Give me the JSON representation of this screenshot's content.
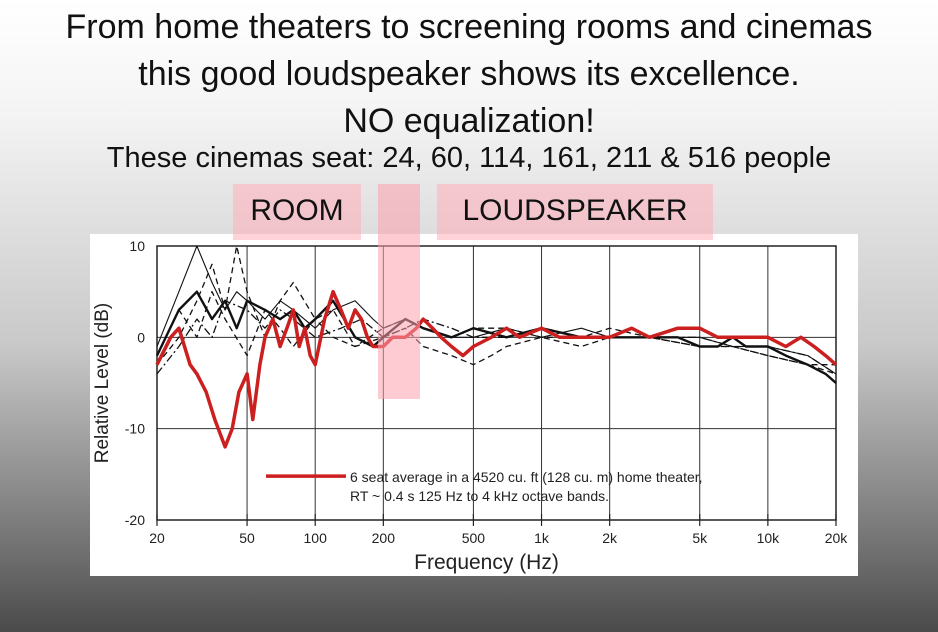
{
  "slide": {
    "line1": "From home theaters to screening rooms and cinemas",
    "line2": "this good loudspeaker shows its excellence.",
    "line3": "NO equalization!",
    "line4": "These cinemas seat: 24, 60, 114, 161, 211 & 516 people"
  },
  "labels": {
    "room": "ROOM",
    "loudspeaker": "LOUDSPEAKER"
  },
  "chart_data": {
    "type": "line",
    "xlabel": "Frequency (Hz)",
    "ylabel": "Relative Level (dB)",
    "xscale": "log",
    "xlim": [
      20,
      20000
    ],
    "ylim": [
      -20,
      10
    ],
    "x_ticks": [
      20,
      50,
      100,
      200,
      500,
      1000,
      2000,
      5000,
      10000,
      20000
    ],
    "x_tick_labels": [
      "20",
      "50",
      "100",
      "200",
      "500",
      "1k",
      "2k",
      "5k",
      "10k",
      "20k"
    ],
    "y_ticks": [
      10,
      0,
      -10,
      -20
    ],
    "y_tick_labels": [
      "10",
      "0",
      "-10",
      "-20"
    ],
    "grid": true,
    "legend": {
      "line1": "6 seat average in a 4520 cu. ft (128 cu. m) home theater,",
      "line2": "RT ~ 0.4 s 125 Hz to 4 kHz octave bands.",
      "color": "#cc1f1f"
    },
    "series": [
      {
        "style": "highlight",
        "x": [
          20,
          23,
          25,
          28,
          30,
          33,
          36,
          40,
          43,
          46,
          50,
          53,
          57,
          60,
          65,
          70,
          75,
          80,
          85,
          90,
          95,
          100,
          110,
          120,
          130,
          140,
          150,
          160,
          170,
          180,
          200,
          220,
          250,
          280,
          300,
          330,
          360,
          400,
          450,
          500,
          600,
          700,
          800,
          1000,
          1200,
          1500,
          2000,
          2500,
          3000,
          4000,
          5000,
          6000,
          7000,
          8000,
          10000,
          12000,
          14000,
          16000,
          18000,
          20000
        ],
        "y": [
          -3,
          0,
          1,
          -3,
          -4,
          -6,
          -9,
          -12,
          -10,
          -6,
          -4,
          -9,
          -3,
          0,
          2,
          -1,
          1,
          3,
          -1,
          1,
          -2,
          -3,
          2,
          5,
          3,
          1,
          3,
          2,
          0,
          -1,
          -1,
          0,
          0,
          1,
          2,
          1,
          0,
          -1,
          -2,
          -1,
          0,
          1,
          0,
          1,
          0,
          0,
          0,
          1,
          0,
          1,
          1,
          0,
          0,
          0,
          0,
          -1,
          0,
          -1,
          -2,
          -3
        ]
      },
      {
        "style": "solid-heavy",
        "x": [
          20,
          25,
          30,
          35,
          40,
          45,
          50,
          60,
          70,
          80,
          90,
          100,
          120,
          150,
          180,
          200,
          250,
          300,
          400,
          500,
          700,
          1000,
          1500,
          2000,
          3000,
          4000,
          5000,
          6000,
          7000,
          8000,
          10000,
          12000,
          15000,
          18000,
          20000
        ],
        "y": [
          -2,
          3,
          5,
          2,
          4,
          1,
          4,
          3,
          2,
          3,
          1,
          2,
          4,
          0,
          -1,
          0,
          2,
          1,
          0,
          1,
          0,
          1,
          0,
          0,
          0,
          0,
          -1,
          -1,
          0,
          -1,
          -1,
          -2,
          -3,
          -4,
          -5
        ]
      },
      {
        "style": "solid-thin",
        "x": [
          20,
          25,
          30,
          35,
          40,
          45,
          50,
          60,
          70,
          80,
          100,
          120,
          150,
          180,
          200,
          250,
          300,
          400,
          500,
          700,
          1000,
          1500,
          2000,
          3000,
          5000,
          7000,
          10000,
          15000,
          20000
        ],
        "y": [
          -1,
          5,
          10,
          6,
          3,
          5,
          4,
          2,
          4,
          3,
          1,
          3,
          4,
          2,
          1,
          2,
          1,
          0,
          0,
          1,
          0,
          1,
          0,
          0,
          0,
          -1,
          -1,
          -2,
          -4
        ]
      },
      {
        "style": "dashed",
        "x": [
          20,
          25,
          30,
          35,
          40,
          45,
          50,
          60,
          70,
          80,
          100,
          120,
          150,
          200,
          250,
          300,
          400,
          500,
          600,
          700,
          1000,
          1500,
          2000,
          3000,
          5000,
          7000,
          10000,
          15000,
          20000
        ],
        "y": [
          -3,
          0,
          4,
          8,
          3,
          10,
          5,
          0,
          4,
          6,
          2,
          3,
          -1,
          0,
          1,
          -1,
          -2,
          -3,
          -2,
          -1,
          0,
          -1,
          0,
          0,
          -1,
          -1,
          -2,
          -3,
          -4
        ]
      },
      {
        "style": "dashed",
        "x": [
          20,
          25,
          30,
          35,
          40,
          50,
          60,
          70,
          80,
          100,
          120,
          150,
          200,
          250,
          300,
          400,
          500,
          700,
          1000,
          1500,
          2000,
          3000,
          5000,
          7000,
          10000,
          15000,
          20000
        ],
        "y": [
          -2,
          3,
          0,
          5,
          2,
          -2,
          3,
          1,
          -1,
          2,
          0,
          -1,
          1,
          2,
          1,
          0,
          1,
          1,
          0,
          0,
          1,
          0,
          -1,
          -1,
          -2,
          -3,
          -3
        ]
      },
      {
        "style": "dashdot",
        "x": [
          20,
          25,
          30,
          35,
          40,
          50,
          60,
          70,
          80,
          100,
          130,
          160,
          200,
          250,
          300,
          400,
          500,
          700,
          1000,
          1500,
          2000,
          3000,
          5000,
          7000,
          10000,
          15000,
          20000
        ],
        "y": [
          -4,
          -1,
          2,
          0,
          4,
          3,
          1,
          3,
          2,
          0,
          1,
          2,
          0,
          1,
          2,
          1,
          0,
          0,
          1,
          0,
          0,
          0,
          0,
          -1,
          -1,
          -2,
          -4
        ]
      }
    ]
  }
}
